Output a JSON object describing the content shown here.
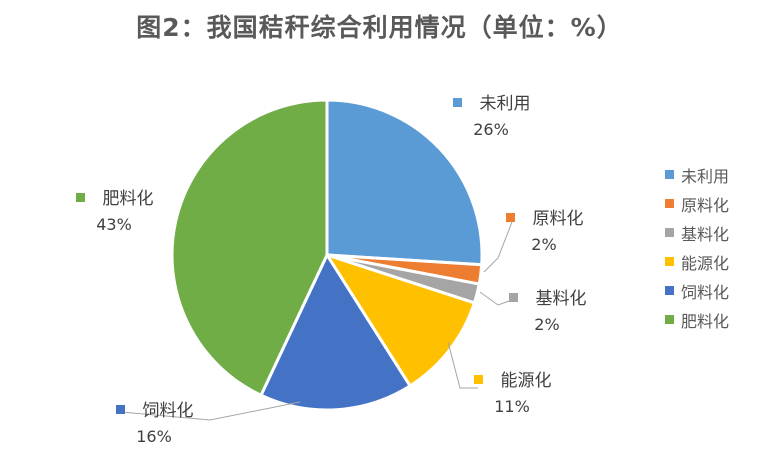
{
  "chart_data": {
    "type": "pie",
    "title": "图2：我国秸秆综合利用情况（单位：%）",
    "categories": [
      "未利用",
      "原料化",
      "基料化",
      "能源化",
      "饲料化",
      "肥料化"
    ],
    "values": [
      26,
      2,
      2,
      11,
      16,
      43
    ],
    "value_labels": [
      "26%",
      "2%",
      "2%",
      "11%",
      "16%",
      "43%"
    ],
    "colors": [
      "#5B9BD5",
      "#ED7D31",
      "#A5A5A5",
      "#FFC000",
      "#4472C4",
      "#70AD47"
    ],
    "legend_position": "right"
  }
}
